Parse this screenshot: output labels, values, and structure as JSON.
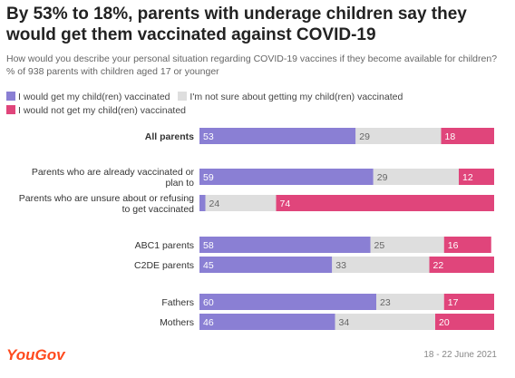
{
  "header": {
    "title": "By 53% to 18%, parents with underage children say they would get them vaccinated against COVID-19",
    "subtitle": "How would you describe your personal situation regarding COVID-19 vaccines if they become available for children? % of 938 parents with children aged 17 or younger"
  },
  "footer": {
    "brand": "YouGov",
    "date": "18 - 22 June 2021"
  },
  "colors": {
    "yes": "#8a7fd4",
    "unsure": "#dedede",
    "no": "#e0457b"
  },
  "chart_data": {
    "type": "bar",
    "orientation": "horizontal",
    "stacked": true,
    "xlim": [
      0,
      100
    ],
    "series": [
      {
        "name": "I would get my child(ren) vaccinated",
        "values": [
          53,
          59,
          2,
          58,
          45,
          60,
          46
        ]
      },
      {
        "name": "I'm not sure about getting my child(ren) vaccinated",
        "values": [
          29,
          29,
          24,
          25,
          33,
          23,
          34
        ]
      },
      {
        "name": "I would not get my child(ren) vaccinated",
        "values": [
          18,
          12,
          74,
          16,
          22,
          17,
          20
        ]
      }
    ],
    "categories": [
      "All parents",
      "Parents who are already vaccinated or plan to",
      "Parents who are unsure about or refusing to get vaccinated",
      "ABC1 parents",
      "C2DE parents",
      "Fathers",
      "Mothers"
    ],
    "data_labels": [
      [
        "53",
        "29",
        "18"
      ],
      [
        "59",
        "29",
        "12"
      ],
      [
        "",
        "24",
        "74"
      ],
      [
        "58",
        "25",
        "16"
      ],
      [
        "45",
        "33",
        "22"
      ],
      [
        "60",
        "23",
        "17"
      ],
      [
        "46",
        "34",
        "20"
      ]
    ],
    "category_labels": [
      [
        "All parents"
      ],
      [
        "Parents who are already vaccinated or",
        "plan to"
      ],
      [
        "Parents who are unsure about or refusing",
        "to get vaccinated"
      ],
      [
        "ABC1 parents"
      ],
      [
        "C2DE parents"
      ],
      [
        "Fathers"
      ],
      [
        "Mothers"
      ]
    ],
    "legend": [
      "I would get my child(ren) vaccinated",
      "I'm not sure about getting my child(ren) vaccinated",
      "I would not get my child(ren) vaccinated"
    ]
  }
}
